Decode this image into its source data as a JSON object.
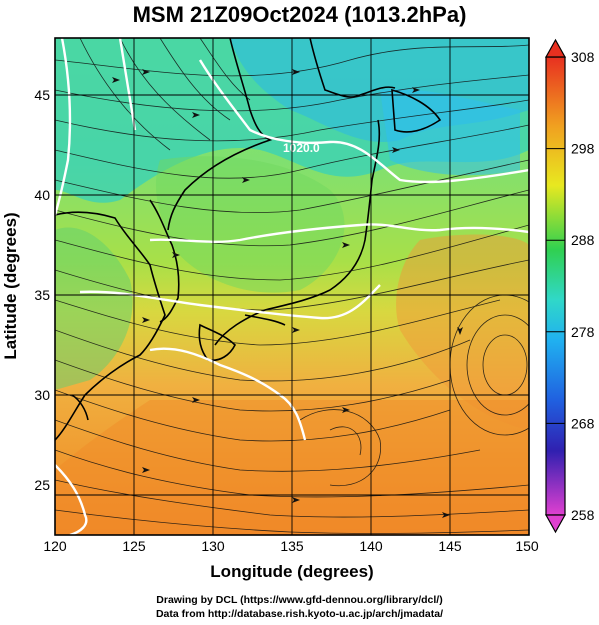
{
  "title": "MSM 21Z09Oct2024 (1013.2hPa)",
  "map": {
    "x_label": "Longitude (degrees)",
    "y_label": "Latitude  (degrees)",
    "lon_range": [
      120,
      150
    ],
    "lat_range": [
      22.4,
      47.6
    ],
    "lon_ticks": [
      "120",
      "125",
      "130",
      "135",
      "140",
      "145",
      "150"
    ],
    "lat_ticks": [
      "25",
      "30",
      "35",
      "40",
      "45"
    ],
    "grid": "on",
    "contour_label": "1020.0"
  },
  "colorbar": {
    "ticks": [
      "258",
      "268",
      "278",
      "288",
      "298",
      "308"
    ],
    "colors": [
      "#e040d0",
      "#2020c0",
      "#2090f0",
      "#30d0d0",
      "#30d060",
      "#e0e020",
      "#f09020",
      "#e03020"
    ]
  },
  "credits": {
    "line1": "Drawing by DCL (https://www.gfd-dennou.org/library/dcl/)",
    "line2": "Data from http://database.rish.kyoto-u.ac.jp/arch/jmadata/"
  }
}
